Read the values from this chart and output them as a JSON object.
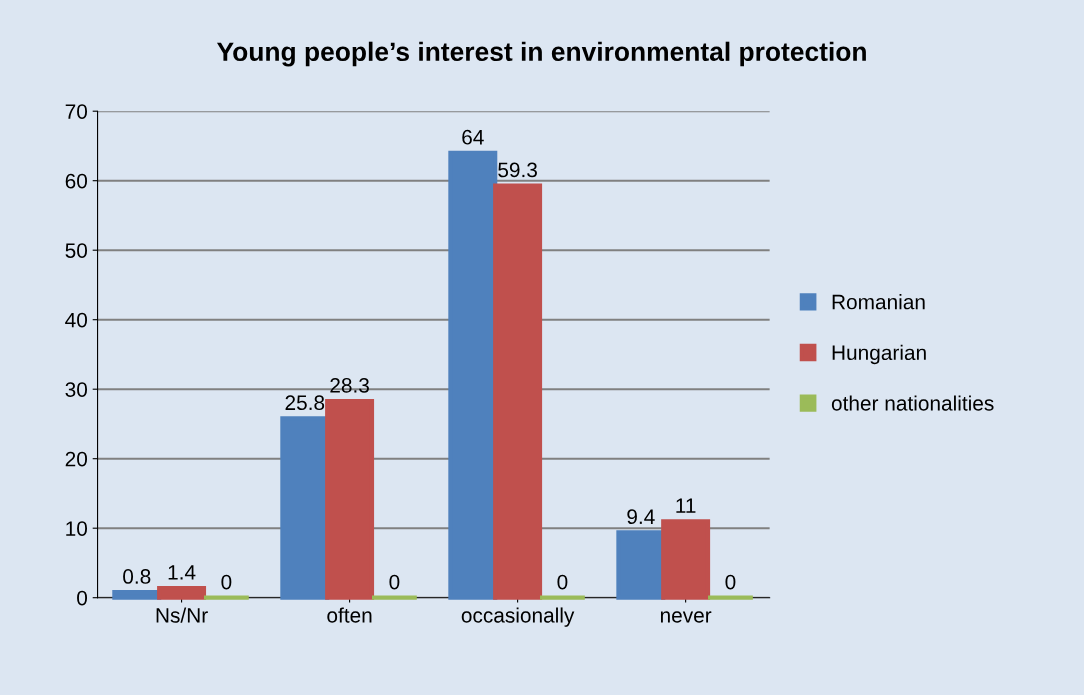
{
  "chart_data": {
    "type": "bar",
    "title": "Young people’s interest in environmental protection",
    "categories": [
      "Ns/Nr",
      "often",
      "occasionally",
      "never"
    ],
    "series": [
      {
        "name": "Romanian",
        "color": "#4f81bd",
        "values": [
          0.8,
          25.8,
          64,
          9.4
        ]
      },
      {
        "name": "Hungarian",
        "color": "#c0504d",
        "values": [
          1.4,
          28.3,
          59.3,
          11
        ]
      },
      {
        "name": "other nationalities",
        "color": "#9bbb59",
        "values": [
          0,
          0,
          0,
          0
        ]
      }
    ],
    "ylim": [
      0,
      70
    ],
    "yticks": [
      0,
      10,
      20,
      30,
      40,
      50,
      60,
      70
    ],
    "grid": "y",
    "legend": "right",
    "data_labels": true
  }
}
